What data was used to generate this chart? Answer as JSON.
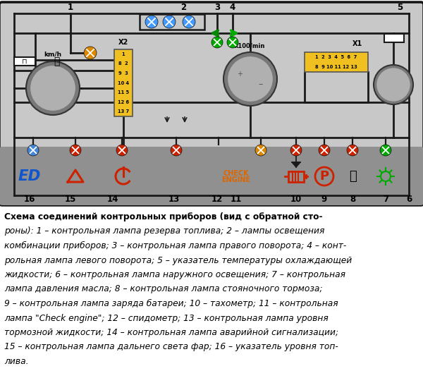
{
  "bg_color": "#ffffff",
  "description_lines": [
    {
      "text": "Схема соединений контрольных приборов (вид с обратной сто-",
      "bold": true,
      "italic": false
    },
    {
      "text": "роны): ",
      "bold": false,
      "italic": true,
      "inline": [
        {
          "text": "1",
          "bold": false,
          "italic": true
        },
        {
          "text": " – контрольная лампа резерва топлива; ",
          "bold": false,
          "italic": true
        },
        {
          "text": "2",
          "bold": false,
          "italic": true
        },
        {
          "text": " – лампы освещения комбинации приборов; ",
          "bold": false,
          "italic": true
        },
        {
          "text": "3",
          "bold": false,
          "italic": true
        },
        {
          "text": " – контрольная лампа правого поворота; ",
          "bold": false,
          "italic": true
        },
        {
          "text": "4",
          "bold": false,
          "italic": true
        },
        {
          "text": " – конт-рольная лампа левого поворота; ",
          "bold": false,
          "italic": true
        },
        {
          "text": "5",
          "bold": false,
          "italic": true
        },
        {
          "text": " – указатель температуры охлаждающей жидкости; ",
          "bold": false,
          "italic": true
        },
        {
          "text": "6",
          "bold": false,
          "italic": true
        },
        {
          "text": " – контрольная лампа наружного освещения; ",
          "bold": false,
          "italic": true
        },
        {
          "text": "7",
          "bold": false,
          "italic": true
        },
        {
          "text": " – контрольная лампа давления масла; ",
          "bold": false,
          "italic": true
        },
        {
          "text": "8",
          "bold": false,
          "italic": true
        },
        {
          "text": " – контрольная лампа стояночного тормоза; ",
          "bold": false,
          "italic": true
        },
        {
          "text": "9",
          "bold": false,
          "italic": true
        },
        {
          "text": " – контрольная лампа заряда батареи; ",
          "bold": false,
          "italic": true
        },
        {
          "text": "10",
          "bold": false,
          "italic": true
        },
        {
          "text": " – тахометр; ",
          "bold": false,
          "italic": true
        },
        {
          "text": "11",
          "bold": false,
          "italic": true
        },
        {
          "text": " – контрольная лампа \\\"Check engine\\\"; ",
          "bold": false,
          "italic": true
        },
        {
          "text": "12",
          "bold": false,
          "italic": true
        },
        {
          "text": " – спидометр; ",
          "bold": false,
          "italic": true
        },
        {
          "text": "13",
          "bold": false,
          "italic": true
        },
        {
          "text": " – контрольная лампа уровня тормозной жидкости; ",
          "bold": false,
          "italic": true
        },
        {
          "text": "14",
          "bold": false,
          "italic": true
        },
        {
          "text": " – контрольная лампа аварийной сигнализации; ",
          "bold": false,
          "italic": true
        },
        {
          "text": "15",
          "bold": false,
          "italic": true
        },
        {
          "text": " – контрольная лампа дальнего света фар; ",
          "bold": false,
          "italic": true
        },
        {
          "text": "16",
          "bold": false,
          "italic": true
        },
        {
          "text": " – указатель уровня топ-лива.",
          "bold": false,
          "italic": true
        }
      ]
    }
  ],
  "desc_text_lines": [
    "Схема соединений контрольных приборов (вид с обратной сто-",
    "роны): 1 – контрольная лампа резерва топлива; 2 – лампы освещения",
    "комбинации приборов; 3 – контрольная лампа правого поворота; 4 – конт-",
    "рольная лампа левого поворота; 5 – указатель температуры охлаждающей",
    "жидкости; 6 – контрольная лампа наружного освещения; 7 – контрольная",
    "лампа давления масла; 8 – контрольная лампа стояночного тормоза;",
    "9 – контрольная лампа заряда батареи; 10 – тахометр; 11 – контрольная",
    "лампа \"Check engine\"; 12 – спидометр; 13 – контрольная лампа уровня",
    "тормозной жидкости; 14 – контрольная лампа аварийной сигнализации;",
    "15 – контрольная лампа дальнего света фар; 16 – указатель уровня топ-",
    "лива."
  ],
  "panel_bg": "#c8c8c8",
  "panel_dark": "#909090",
  "wire_color": "#1a1a1a",
  "connector_color": "#f0c020",
  "gauge_outer": "#787878",
  "gauge_inner": "#b0b0b0"
}
